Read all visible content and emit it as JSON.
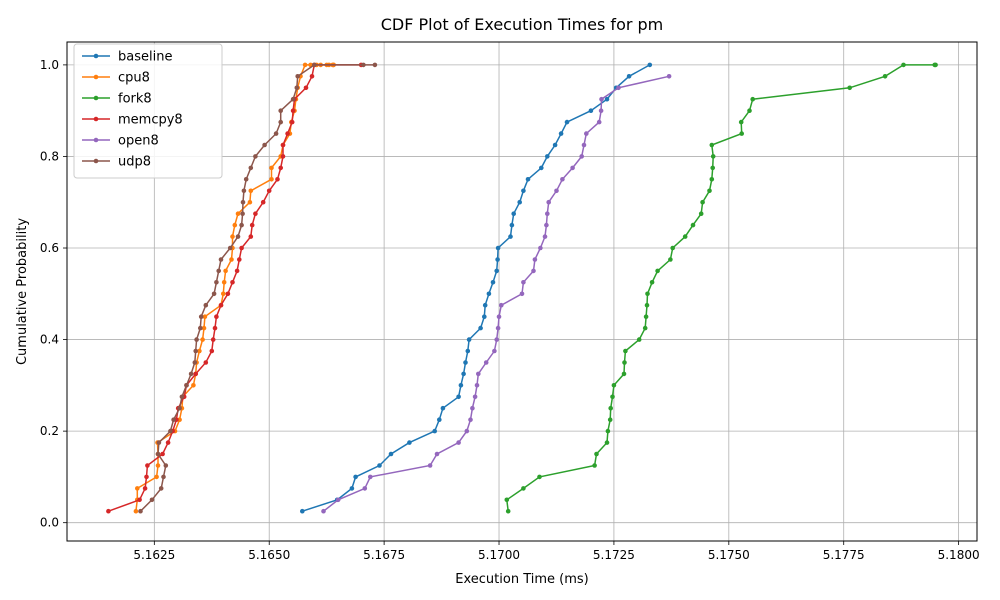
{
  "chart_data": {
    "type": "line",
    "title": "CDF Plot of Execution Times for pm",
    "xlabel": "Execution Time (ms)",
    "ylabel": "Cumulative Probability",
    "xlim": [
      5.1606,
      5.1804
    ],
    "ylim": [
      -0.04,
      1.05
    ],
    "xticks": [
      5.1625,
      5.165,
      5.1675,
      5.17,
      5.1725,
      5.175,
      5.1775,
      5.18
    ],
    "xtick_labels": [
      "5.1625",
      "5.1650",
      "5.1675",
      "5.1700",
      "5.1725",
      "5.1750",
      "5.1775",
      "5.1800"
    ],
    "yticks": [
      0.0,
      0.2,
      0.4,
      0.6,
      0.8,
      1.0
    ],
    "ytick_labels": [
      "0.0",
      "0.2",
      "0.4",
      "0.6",
      "0.8",
      "1.0"
    ],
    "grid": true,
    "legend_position": "top-left",
    "y_levels": [
      0.025,
      0.05,
      0.075,
      0.1,
      0.125,
      0.15,
      0.175,
      0.2,
      0.225,
      0.25,
      0.275,
      0.3,
      0.325,
      0.35,
      0.375,
      0.4,
      0.425,
      0.45,
      0.475,
      0.5,
      0.525,
      0.55,
      0.575,
      0.6,
      0.625,
      0.65,
      0.675,
      0.7,
      0.725,
      0.75,
      0.775,
      0.8,
      0.825,
      0.85,
      0.875,
      0.9,
      0.925,
      0.95,
      0.975,
      1.0
    ],
    "series": [
      {
        "name": "baseline",
        "color": "#1f77b4",
        "x": [
          5.16572,
          5.16648,
          5.1668,
          5.16688,
          5.1674,
          5.16765,
          5.16805,
          5.1686,
          5.1687,
          5.16878,
          5.16912,
          5.16917,
          5.16923,
          5.16927,
          5.16932,
          5.16935,
          5.1696,
          5.16968,
          5.1697,
          5.16978,
          5.16987,
          5.16995,
          5.16997,
          5.16998,
          5.17025,
          5.17028,
          5.17032,
          5.17045,
          5.17053,
          5.17063,
          5.17092,
          5.17105,
          5.17122,
          5.17135,
          5.17148,
          5.172,
          5.17235,
          5.17255,
          5.17283,
          5.17328
        ]
      },
      {
        "name": "cpu8",
        "color": "#ff7f0e",
        "x": [
          5.1621,
          5.16213,
          5.16213,
          5.16255,
          5.16258,
          5.16258,
          5.16257,
          5.16295,
          5.16305,
          5.1631,
          5.16312,
          5.16335,
          5.1634,
          5.16342,
          5.16348,
          5.16355,
          5.16358,
          5.1636,
          5.16395,
          5.164,
          5.16402,
          5.16405,
          5.16418,
          5.1642,
          5.1642,
          5.16425,
          5.16432,
          5.16458,
          5.1646,
          5.16505,
          5.16505,
          5.16525,
          5.1653,
          5.16545,
          5.16548,
          5.16555,
          5.16558,
          5.16562,
          5.16568,
          5.16578,
          5.1659,
          5.16603,
          5.16612,
          5.16625,
          5.1663,
          5.16638,
          5.1664,
          5.1664
        ]
      },
      {
        "name": "fork8",
        "color": "#2ca02c",
        "x": [
          5.1702,
          5.17017,
          5.17053,
          5.17088,
          5.17208,
          5.17212,
          5.17235,
          5.17237,
          5.17242,
          5.17243,
          5.17247,
          5.1725,
          5.17272,
          5.17273,
          5.17275,
          5.17305,
          5.17318,
          5.1732,
          5.17322,
          5.17323,
          5.17333,
          5.17345,
          5.17373,
          5.17378,
          5.17405,
          5.17422,
          5.1744,
          5.17443,
          5.17458,
          5.17463,
          5.17465,
          5.17466,
          5.17463,
          5.17528,
          5.17527,
          5.17545,
          5.17552,
          5.17763,
          5.1784,
          5.1788,
          5.17948,
          5.1795
        ]
      },
      {
        "name": "memcpy8",
        "color": "#d62728",
        "x": [
          5.1615,
          5.16218,
          5.1623,
          5.16233,
          5.16235,
          5.16268,
          5.1628,
          5.1629,
          5.16298,
          5.16302,
          5.16315,
          5.1632,
          5.1634,
          5.16362,
          5.16375,
          5.16378,
          5.16382,
          5.16385,
          5.16395,
          5.1641,
          5.1642,
          5.1643,
          5.16435,
          5.1644,
          5.1646,
          5.16463,
          5.1647,
          5.16487,
          5.165,
          5.16518,
          5.16525,
          5.1653,
          5.1653,
          5.1654,
          5.1655,
          5.16552,
          5.16555,
          5.1658,
          5.16593,
          5.16598,
          5.167
        ]
      },
      {
        "name": "open8",
        "color": "#9467bd",
        "x": [
          5.16618,
          5.1665,
          5.16708,
          5.1672,
          5.1685,
          5.16865,
          5.16912,
          5.1693,
          5.16938,
          5.16942,
          5.16948,
          5.16952,
          5.16955,
          5.16972,
          5.1699,
          5.16995,
          5.16998,
          5.17,
          5.17005,
          5.1705,
          5.17053,
          5.17075,
          5.17078,
          5.1709,
          5.171,
          5.17103,
          5.17105,
          5.17108,
          5.17125,
          5.17138,
          5.1716,
          5.1718,
          5.17185,
          5.1719,
          5.17218,
          5.17222,
          5.17223,
          5.1726,
          5.1737
        ]
      },
      {
        "name": "udp8",
        "color": "#8c564b",
        "x": [
          5.1622,
          5.16245,
          5.16265,
          5.1627,
          5.16275,
          5.16258,
          5.1626,
          5.16285,
          5.16292,
          5.16305,
          5.1631,
          5.1632,
          5.1633,
          5.16338,
          5.1634,
          5.16342,
          5.1635,
          5.16352,
          5.16362,
          5.1638,
          5.16385,
          5.1639,
          5.16395,
          5.16415,
          5.16432,
          5.1644,
          5.16442,
          5.16443,
          5.16445,
          5.1645,
          5.1646,
          5.1647,
          5.1649,
          5.16515,
          5.16525,
          5.16525,
          5.16552,
          5.1656,
          5.16562,
          5.16598,
          5.16705,
          5.1673
        ]
      }
    ]
  }
}
